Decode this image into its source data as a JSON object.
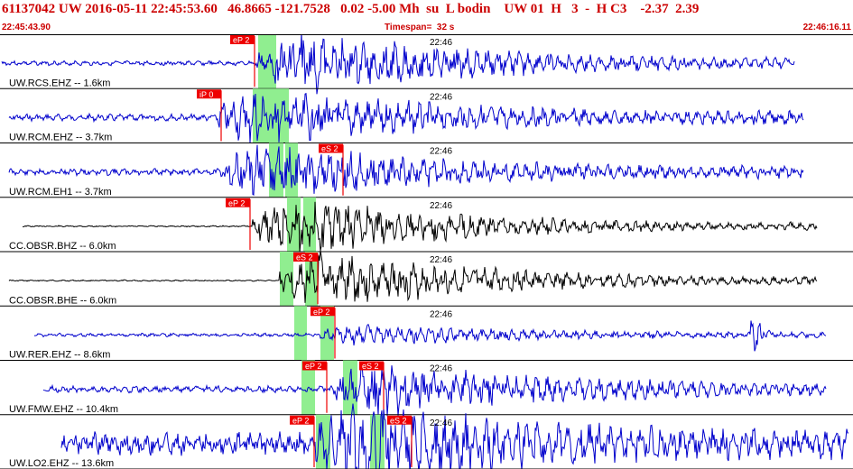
{
  "header": {
    "event_line": "61137042 UW 2016-05-11 22:45:53.60   46.8665 -121.7528   0.02 -5.00 Mh  su  L bodin    UW 01  H   3  -  H C3    -2.37  2.39",
    "start_time": "22:45:43.90",
    "timespan": "Timespan=  32 s",
    "end_time": "22:46:16.11"
  },
  "colors": {
    "trace_blue": "#0000cc",
    "trace_black": "#000000",
    "pick_red": "#ee0000",
    "window_green": "#90ee90",
    "header_red": "#cc0000"
  },
  "traces": [
    {
      "label": "UW.RCS.EHZ -- 1.6km",
      "time_mark": "22:46",
      "color": "blue",
      "picks": [
        {
          "label": "eP 2"
        }
      ]
    },
    {
      "label": "UW.RCM.EHZ -- 3.7km",
      "time_mark": "22:46",
      "color": "blue",
      "picks": [
        {
          "label": "iP 0"
        }
      ]
    },
    {
      "label": "UW.RCM.EH1 -- 3.7km",
      "time_mark": "22:46",
      "color": "blue",
      "picks": [
        {
          "label": "eS 2"
        }
      ]
    },
    {
      "label": "CC.OBSR.BHZ -- 6.0km",
      "time_mark": "22:46",
      "color": "black",
      "picks": [
        {
          "label": "eP 2"
        }
      ]
    },
    {
      "label": "CC.OBSR.BHE -- 6.0km",
      "time_mark": "22:46",
      "color": "black",
      "picks": [
        {
          "label": "eS 2"
        }
      ]
    },
    {
      "label": "UW.RER.EHZ -- 8.6km",
      "time_mark": "22:46",
      "color": "blue",
      "picks": [
        {
          "label": "eP 2"
        }
      ]
    },
    {
      "label": "UW.FMW.EHZ -- 10.4km",
      "time_mark": "22:46",
      "color": "blue",
      "picks": [
        {
          "label": "eP 2"
        },
        {
          "label": "eS 2"
        }
      ]
    },
    {
      "label": "UW.LO2.EHZ -- 13.6km",
      "time_mark": "22:46",
      "color": "blue",
      "picks": [
        {
          "label": "eP 2"
        },
        {
          "label": "eS 2"
        }
      ]
    }
  ]
}
